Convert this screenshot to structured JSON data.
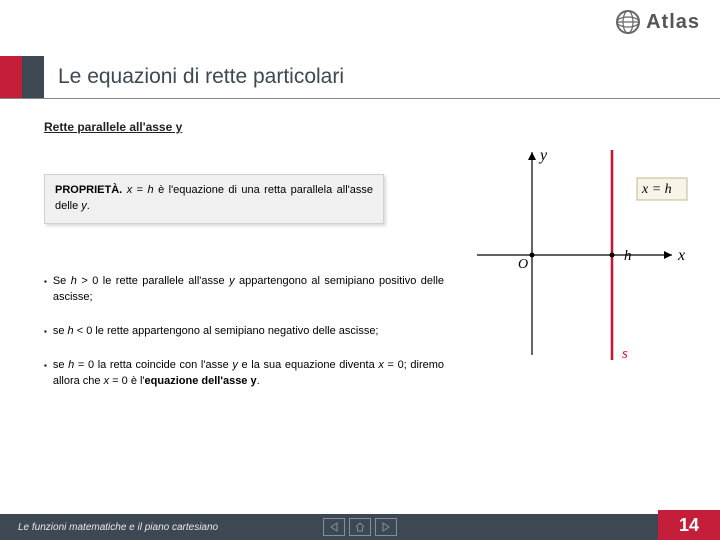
{
  "logo": {
    "text": "Atlas"
  },
  "title": "Le equazioni di rette particolari",
  "subtitle": "Rette parallele all'asse y",
  "property": {
    "label": "PROPRIETÀ.",
    "text_html": "<em class='var'>x</em> = <em class='var'>h</em> è l'equazione di una retta parallela all'asse delle <em class='var'>y</em>."
  },
  "bullets": [
    "Se <em class='var'>h</em> > 0 le rette parallele all'asse <em class='var'>y</em> appartengono al semipiano positivo delle ascisse;",
    "se <em class='var'>h</em> &lt; 0 le rette appartengono al semipiano negativo delle ascisse;",
    "se <em class='var'>h</em> = 0 la retta coincide con l'asse <em class='var'>y</em> e la sua equazione diventa <em class='var'>x</em> = 0; diremo allora che <em class='var'>x</em> = 0 è l'<b>equazione dell'asse y</b>."
  ],
  "diagram": {
    "type": "coordinate-plot",
    "x_axis_label": "x",
    "y_axis_label": "y",
    "line_label": "x = h",
    "h_label": "h",
    "s_label": "s",
    "axis_color": "#000000",
    "line_color": "#d01030",
    "line_width": 2.5,
    "origin_label": "O",
    "h_position": 0.65
  },
  "footer": "Le funzioni matematiche e il piano cartesiano",
  "page_number": "14",
  "colors": {
    "brand_red": "#c41e3a",
    "dark": "#3d4852",
    "box_bg": "#f0f0f0"
  }
}
